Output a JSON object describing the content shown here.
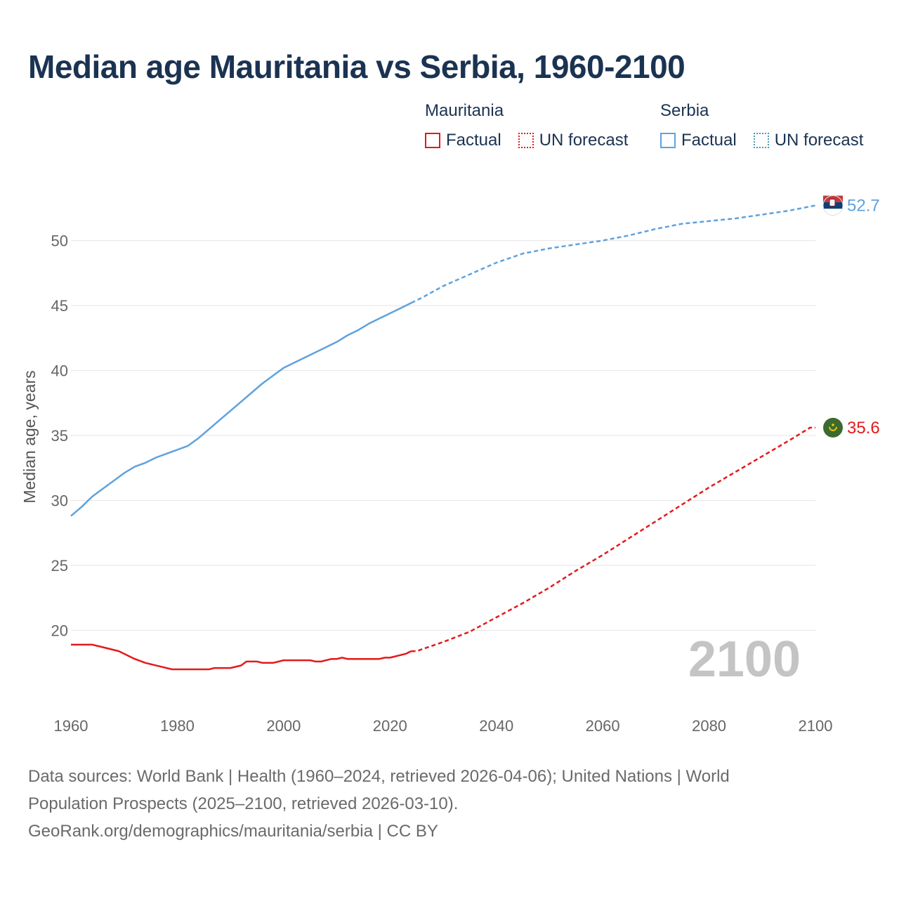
{
  "title": "Median age Mauritania vs Serbia, 1960-2100",
  "legend": {
    "mauritania": {
      "name": "Mauritania",
      "factual": "Factual",
      "forecast": "UN forecast",
      "color": "#e31a1c"
    },
    "serbia": {
      "name": "Serbia",
      "factual": "Factual",
      "forecast": "UN forecast",
      "color": "#5fa2dd"
    }
  },
  "footer": {
    "line1": "Data sources: World Bank | Health (1960–2024, retrieved 2026-04-06); United Nations | World",
    "line2": "Population Prospects (2025–2100, retrieved 2026-03-10).",
    "line3": "GeoRank.org/demographics/mauritania/serbia | CC BY"
  },
  "chart_data": {
    "type": "line",
    "title": "Median age Mauritania vs Serbia, 1960-2100",
    "xlabel": "",
    "ylabel": "Median age, years",
    "xlim": [
      1960,
      2100
    ],
    "ylim": [
      15,
      55
    ],
    "x_ticks": [
      1960,
      1980,
      2000,
      2020,
      2040,
      2060,
      2080,
      2100
    ],
    "y_ticks": [
      20,
      25,
      30,
      35,
      40,
      45,
      50
    ],
    "grid": true,
    "year_label": "2100",
    "series": [
      {
        "name": "Mauritania",
        "color": "#e31a1c",
        "end_label": "35.6",
        "factual": [
          [
            1960,
            18.9
          ],
          [
            1964,
            18.9
          ],
          [
            1966,
            18.7
          ],
          [
            1969,
            18.4
          ],
          [
            1972,
            17.8
          ],
          [
            1974,
            17.5
          ],
          [
            1977,
            17.2
          ],
          [
            1979,
            17.0
          ],
          [
            1986,
            17.0
          ],
          [
            1987,
            17.1
          ],
          [
            1990,
            17.1
          ],
          [
            1992,
            17.3
          ],
          [
            1993,
            17.6
          ],
          [
            1995,
            17.6
          ],
          [
            1996,
            17.5
          ],
          [
            1998,
            17.5
          ],
          [
            2000,
            17.7
          ],
          [
            2005,
            17.7
          ],
          [
            2006,
            17.6
          ],
          [
            2007,
            17.6
          ],
          [
            2009,
            17.8
          ],
          [
            2010,
            17.8
          ],
          [
            2011,
            17.9
          ],
          [
            2012,
            17.8
          ],
          [
            2018,
            17.8
          ],
          [
            2019,
            17.9
          ],
          [
            2020,
            17.9
          ],
          [
            2023,
            18.2
          ],
          [
            2024,
            18.4
          ]
        ],
        "forecast": [
          [
            2024,
            18.4
          ],
          [
            2025,
            18.4
          ],
          [
            2030,
            19.1
          ],
          [
            2035,
            19.9
          ],
          [
            2040,
            21.0
          ],
          [
            2045,
            22.1
          ],
          [
            2050,
            23.3
          ],
          [
            2055,
            24.6
          ],
          [
            2060,
            25.8
          ],
          [
            2065,
            27.1
          ],
          [
            2070,
            28.4
          ],
          [
            2075,
            29.7
          ],
          [
            2080,
            31.0
          ],
          [
            2085,
            32.2
          ],
          [
            2090,
            33.4
          ],
          [
            2095,
            34.6
          ],
          [
            2099,
            35.6
          ],
          [
            2100,
            35.6
          ]
        ]
      },
      {
        "name": "Serbia",
        "color": "#5fa2dd",
        "end_label": "52.7",
        "factual": [
          [
            1960,
            28.8
          ],
          [
            1962,
            29.5
          ],
          [
            1964,
            30.3
          ],
          [
            1966,
            30.9
          ],
          [
            1968,
            31.5
          ],
          [
            1970,
            32.1
          ],
          [
            1972,
            32.6
          ],
          [
            1974,
            32.9
          ],
          [
            1976,
            33.3
          ],
          [
            1978,
            33.6
          ],
          [
            1980,
            33.9
          ],
          [
            1982,
            34.2
          ],
          [
            1984,
            34.8
          ],
          [
            1986,
            35.5
          ],
          [
            1988,
            36.2
          ],
          [
            1990,
            36.9
          ],
          [
            1992,
            37.6
          ],
          [
            1994,
            38.3
          ],
          [
            1996,
            39.0
          ],
          [
            1998,
            39.6
          ],
          [
            2000,
            40.2
          ],
          [
            2002,
            40.6
          ],
          [
            2004,
            41.0
          ],
          [
            2006,
            41.4
          ],
          [
            2008,
            41.8
          ],
          [
            2010,
            42.2
          ],
          [
            2012,
            42.7
          ],
          [
            2014,
            43.1
          ],
          [
            2016,
            43.6
          ],
          [
            2018,
            44.0
          ],
          [
            2020,
            44.4
          ],
          [
            2022,
            44.8
          ],
          [
            2024,
            45.2
          ]
        ],
        "forecast": [
          [
            2024,
            45.2
          ],
          [
            2026,
            45.6
          ],
          [
            2030,
            46.5
          ],
          [
            2035,
            47.4
          ],
          [
            2040,
            48.3
          ],
          [
            2045,
            49.0
          ],
          [
            2050,
            49.4
          ],
          [
            2055,
            49.7
          ],
          [
            2060,
            50.0
          ],
          [
            2065,
            50.4
          ],
          [
            2070,
            50.9
          ],
          [
            2075,
            51.3
          ],
          [
            2080,
            51.5
          ],
          [
            2085,
            51.7
          ],
          [
            2090,
            52.0
          ],
          [
            2095,
            52.3
          ],
          [
            2100,
            52.7
          ]
        ]
      }
    ]
  }
}
